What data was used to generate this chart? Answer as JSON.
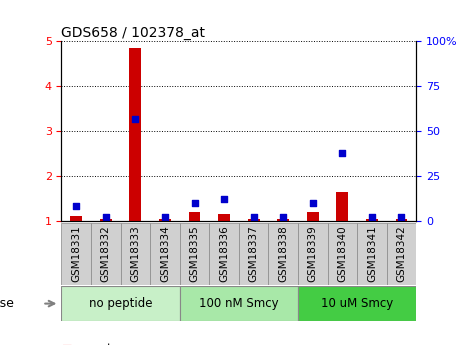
{
  "title": "GDS658 / 102378_at",
  "samples": [
    "GSM18331",
    "GSM18332",
    "GSM18333",
    "GSM18334",
    "GSM18335",
    "GSM18336",
    "GSM18337",
    "GSM18338",
    "GSM18339",
    "GSM18340",
    "GSM18341",
    "GSM18342"
  ],
  "count_values": [
    1.1,
    1.05,
    4.85,
    1.05,
    1.2,
    1.15,
    1.05,
    1.05,
    1.2,
    1.65,
    1.05,
    1.05
  ],
  "percentile_values": [
    8,
    2,
    57,
    2,
    10,
    12,
    2,
    2,
    10,
    38,
    2,
    2
  ],
  "groups": [
    {
      "label": "no peptide",
      "start": 0,
      "end": 3,
      "color": "#c8f0c8"
    },
    {
      "label": "100 nM Smcy",
      "start": 4,
      "end": 7,
      "color": "#a8e8a8"
    },
    {
      "label": "10 uM Smcy",
      "start": 8,
      "end": 11,
      "color": "#44cc44"
    }
  ],
  "ylim_left": [
    1,
    5
  ],
  "ylim_right": [
    0,
    100
  ],
  "yticks_left": [
    1,
    2,
    3,
    4,
    5
  ],
  "yticks_right": [
    0,
    25,
    50,
    75,
    100
  ],
  "bar_color": "#cc0000",
  "dot_color": "#0000cc",
  "bg_color": "#ffffff",
  "plot_bg": "#ffffff",
  "grid_color": "#000000",
  "bar_width": 0.4,
  "dot_size": 18,
  "tick_label_bg": "#d0d0d0",
  "tick_label_fontsize": 7.5,
  "group_label_fontsize": 8.5,
  "dose_fontsize": 9,
  "legend_fontsize": 8,
  "title_fontsize": 10
}
